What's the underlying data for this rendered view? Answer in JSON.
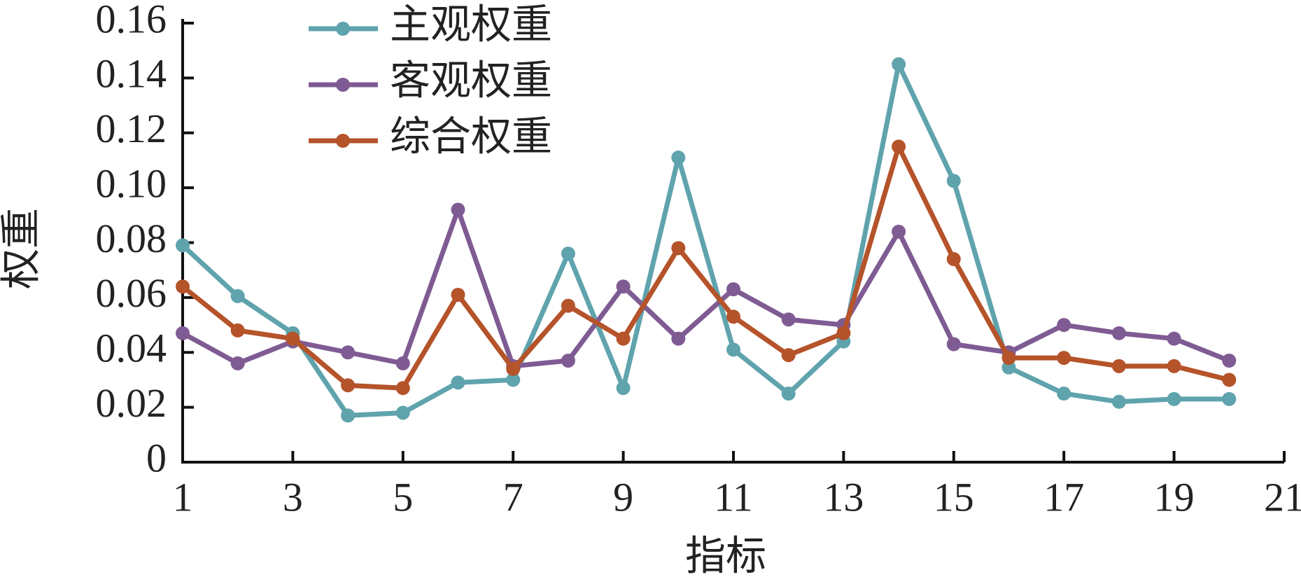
{
  "chart_data": {
    "type": "line",
    "x_label": "指标",
    "y_label": "权重",
    "x": [
      1,
      2,
      3,
      4,
      5,
      6,
      7,
      8,
      9,
      10,
      11,
      12,
      13,
      14,
      15,
      16,
      17,
      18,
      19,
      20
    ],
    "series": [
      {
        "name": "主观权重",
        "color": "#5fa3ad",
        "values": [
          0.079,
          0.0605,
          0.047,
          0.017,
          0.018,
          0.029,
          0.03,
          0.076,
          0.027,
          0.111,
          0.041,
          0.025,
          0.044,
          0.145,
          0.1025,
          0.0345,
          0.025,
          0.022,
          0.023,
          0.023
        ]
      },
      {
        "name": "客观权重",
        "color": "#7f5b93",
        "values": [
          0.047,
          0.036,
          0.044,
          0.04,
          0.036,
          0.092,
          0.035,
          0.037,
          0.064,
          0.045,
          0.063,
          0.052,
          0.05,
          0.084,
          0.043,
          0.04,
          0.05,
          0.047,
          0.045,
          0.037
        ]
      },
      {
        "name": "综合权重",
        "color": "#b5532a",
        "values": [
          0.064,
          0.048,
          0.045,
          0.028,
          0.027,
          0.061,
          0.034,
          0.057,
          0.045,
          0.078,
          0.053,
          0.039,
          0.047,
          0.115,
          0.074,
          0.038,
          0.038,
          0.035,
          0.035,
          0.03
        ]
      }
    ],
    "xlim": [
      1,
      21
    ],
    "xticks": [
      1,
      3,
      5,
      7,
      9,
      11,
      13,
      15,
      17,
      19,
      21
    ],
    "ylim": [
      0,
      0.16
    ],
    "yticks": [
      0,
      0.02,
      0.04,
      0.06,
      0.08,
      {
        "value": 0.1,
        "label": "0.10"
      },
      0.12,
      0.14,
      0.16
    ],
    "legend": "upper-left"
  }
}
